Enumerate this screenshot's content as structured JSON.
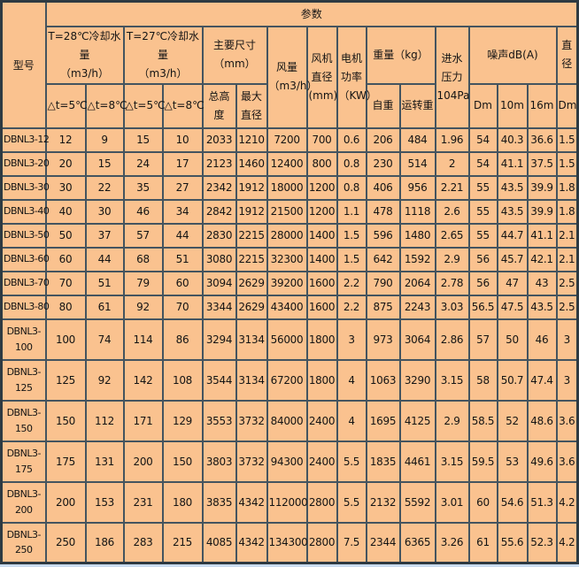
{
  "colors": {
    "cell_bg": "#FAC28F",
    "grid_line": "#44545F",
    "page_bg": "#CADCF0"
  },
  "table": {
    "header": {
      "param": "参数",
      "model": "型号",
      "t28": "T=28℃冷却水量\n（m3/h）",
      "t27": "T=27℃冷却水量\n（m3/h）",
      "dims": "主要尺寸\n（mm）",
      "airflow": "风量\n（m3/h）",
      "fan_dia": "风机\n直径\n(mm)",
      "motor": "电机\n功率\n（KW）",
      "weight": "重量（kg）",
      "inlet": "进水\n压力\n104Pa",
      "noise": "噪声dB(A)",
      "dia": "直径",
      "sub": [
        "△t=5℃",
        "△t=8℃",
        "△t=5℃",
        "△t=8℃",
        "总高度",
        "最大\n直径",
        "自重",
        "运转重",
        "Dm",
        "10m",
        "16m",
        "Dm"
      ]
    },
    "rows": [
      {
        "model": "DBNL3-12",
        "values": [
          12,
          9,
          15,
          10,
          2033,
          1210,
          7200,
          700,
          0.6,
          206,
          484,
          1.96,
          54,
          40.3,
          36.6,
          1.5
        ]
      },
      {
        "model": "DBNL3-20",
        "values": [
          20,
          15,
          24,
          17,
          2123,
          1460,
          12400,
          800,
          0.8,
          230,
          514,
          2,
          54,
          41.1,
          37.5,
          1.5
        ]
      },
      {
        "model": "DBNL3-30",
        "values": [
          30,
          22,
          35,
          27,
          2342,
          1912,
          18000,
          1200,
          0.8,
          406,
          956,
          2.21,
          55,
          43.5,
          39.9,
          1.8
        ]
      },
      {
        "model": "DBNL3-40",
        "values": [
          40,
          30,
          46,
          34,
          2842,
          1912,
          21500,
          1200,
          1.1,
          478,
          1118,
          2.6,
          55,
          43.5,
          39.9,
          1.8
        ]
      },
      {
        "model": "DBNL3-50",
        "values": [
          50,
          37,
          57,
          44,
          2830,
          2215,
          28000,
          1400,
          1.5,
          596,
          1480,
          2.65,
          55,
          44.7,
          41.1,
          2.1
        ]
      },
      {
        "model": "DBNL3-60",
        "values": [
          60,
          44,
          68,
          51,
          3080,
          2215,
          32300,
          1400,
          1.5,
          642,
          1592,
          2.9,
          56,
          45.7,
          42.1,
          2.1
        ]
      },
      {
        "model": "DBNL3-70",
        "values": [
          70,
          51,
          79,
          60,
          3094,
          2629,
          39200,
          1600,
          2.2,
          790,
          2064,
          2.78,
          56,
          47,
          43,
          2.5
        ]
      },
      {
        "model": "DBNL3-80",
        "values": [
          80,
          61,
          92,
          70,
          3344,
          2629,
          43400,
          1600,
          2.2,
          875,
          2243,
          3.03,
          56.5,
          47.5,
          43.5,
          2.5
        ]
      },
      {
        "model": "DBNL3-\n100",
        "values": [
          100,
          74,
          114,
          86,
          3294,
          3134,
          56000,
          1800,
          3,
          973,
          3064,
          2.86,
          57,
          50,
          46,
          3
        ]
      },
      {
        "model": "DBNL3-\n125",
        "values": [
          125,
          92,
          142,
          108,
          3544,
          3134,
          67200,
          1800,
          4,
          1063,
          3290,
          3.15,
          58,
          50.7,
          47.4,
          3
        ]
      },
      {
        "model": "DBNL3-\n150",
        "values": [
          150,
          112,
          171,
          129,
          3553,
          3732,
          84000,
          2400,
          4,
          1695,
          4125,
          2.9,
          58.5,
          52,
          48.6,
          3.6
        ]
      },
      {
        "model": "DBNL3-\n175",
        "values": [
          175,
          131,
          200,
          150,
          3803,
          3732,
          94300,
          2400,
          5.5,
          1835,
          4461,
          3.15,
          59.5,
          53,
          49.6,
          3.6
        ]
      },
      {
        "model": "DBNL3-\n200",
        "values": [
          200,
          153,
          231,
          180,
          3835,
          4342,
          112000,
          2800,
          5.5,
          2132,
          5592,
          3.01,
          60,
          54.6,
          51.3,
          4.2
        ]
      },
      {
        "model": "DBNL3-\n250",
        "values": [
          250,
          186,
          283,
          215,
          4085,
          4342,
          134300,
          2800,
          7.5,
          2344,
          6365,
          3.26,
          61,
          55.6,
          52.3,
          4.2
        ]
      }
    ]
  }
}
